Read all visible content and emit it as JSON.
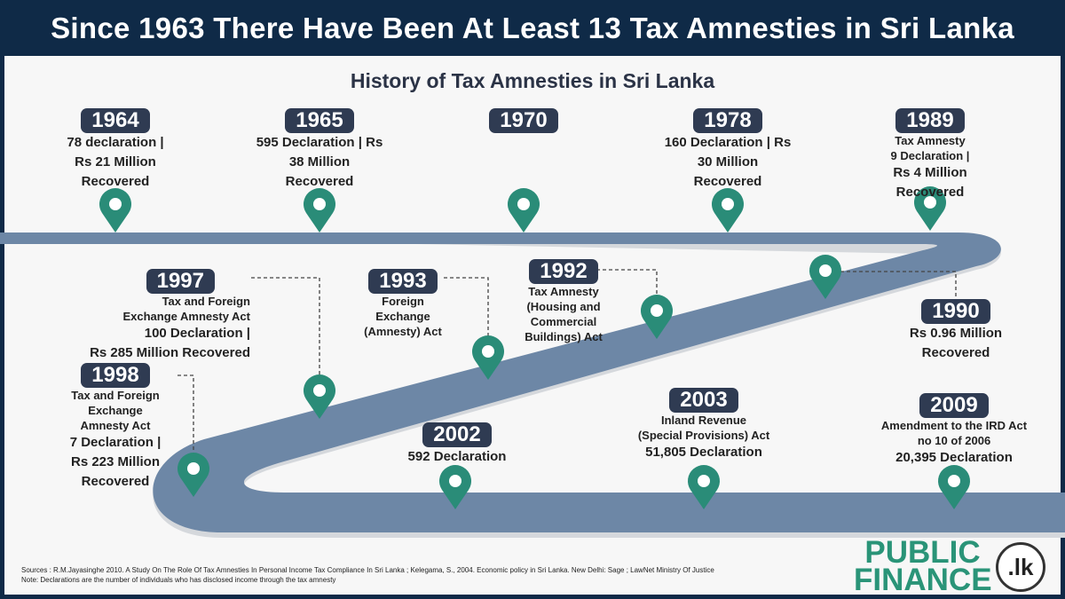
{
  "title": "Since 1963 There Have Been At Least 13 Tax Amnesties in Sri Lanka",
  "subtitle": "History of Tax Amnesties in Sri Lanka",
  "colors": {
    "frame": "#0f2a47",
    "road": "#6d87a6",
    "pin": "#2a8c78",
    "badge": "#2f3b52"
  },
  "events": [
    {
      "year": "1964",
      "lines": [
        "78 declaration |",
        "Rs 21 Million",
        "Recovered"
      ]
    },
    {
      "year": "1965",
      "lines": [
        "595 Declaration | Rs",
        "38 Million",
        "Recovered"
      ]
    },
    {
      "year": "1970",
      "lines": []
    },
    {
      "year": "1978",
      "lines": [
        "160 Declaration | Rs",
        "30 Million",
        "Recovered"
      ]
    },
    {
      "year": "1989",
      "lines": [
        "Tax Amnesty",
        "9 Declaration |",
        "Rs 4 Million",
        "Recovered"
      ]
    },
    {
      "year": "1990",
      "lines": [
        "Rs 0.96 Million",
        "Recovered"
      ]
    },
    {
      "year": "1992",
      "lines": [
        "Tax Amnesty",
        "(Housing and",
        "Commercial",
        "Buildings) Act"
      ]
    },
    {
      "year": "1993",
      "lines": [
        "Foreign",
        "Exchange",
        "(Amnesty) Act"
      ]
    },
    {
      "year": "1997",
      "lines": [
        "Tax and Foreign",
        "Exchange Amnesty Act",
        "100 Declaration |",
        "Rs 285 Million Recovered"
      ]
    },
    {
      "year": "1998",
      "lines": [
        "Tax and Foreign",
        "Exchange",
        "Amnesty Act",
        "7 Declaration |",
        "Rs 223 Million",
        "Recovered"
      ]
    },
    {
      "year": "2002",
      "lines": [
        "592 Declaration"
      ]
    },
    {
      "year": "2003",
      "lines": [
        "Inland Revenue",
        "(Special Provisions) Act",
        "51,805 Declaration"
      ]
    },
    {
      "year": "2009",
      "lines": [
        "Amendment to the IRD Act",
        "no 10 of 2006",
        "20,395 Declaration"
      ]
    }
  ],
  "sources": "Sources : R.M.Jayasinghe  2010. A Study On The Role Of Tax Amnesties In Personal Income Tax Compliance In Sri Lanka ; Kelegama, S., 2004. Economic policy in Sri Lanka. New Delhi: Sage ; LawNet Ministry Of Justice",
  "note": "Note: Declarations are the number of individuals who has disclosed income through the tax amnesty",
  "logo": {
    "line1": "PUBLIC",
    "line2": "FINANCE",
    "seal": ".lk"
  }
}
